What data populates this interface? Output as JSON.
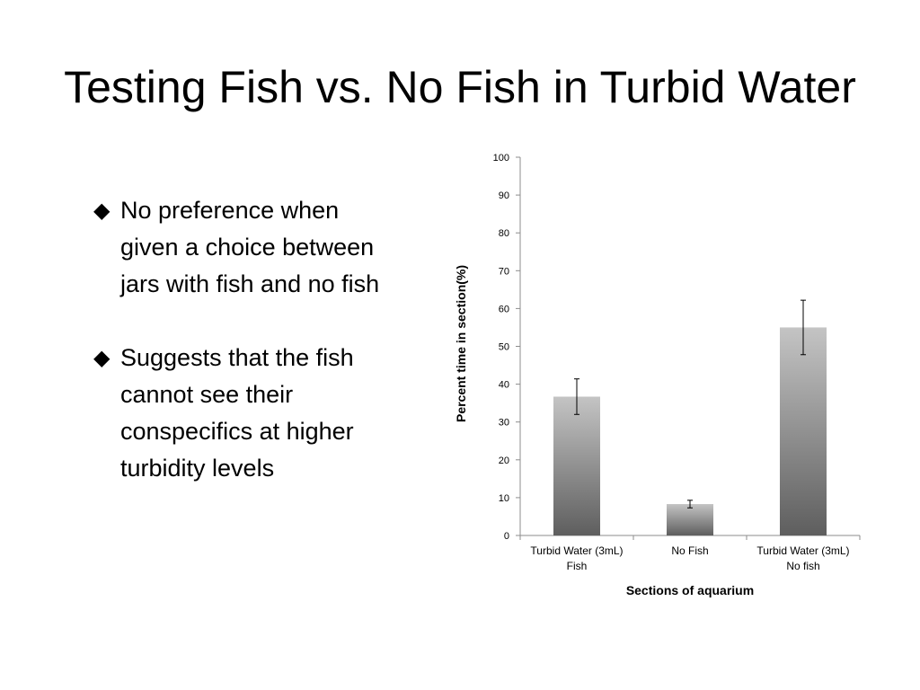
{
  "slide": {
    "title": "Testing Fish vs. No Fish in Turbid Water",
    "bullets": [
      {
        "marker": "◆",
        "text": "No preference when given a choice between jars with fish and no fish"
      },
      {
        "marker": "◆",
        "text": "Suggests that the fish cannot see their conspecifics at higher turbidity levels"
      }
    ]
  },
  "chart_data": {
    "type": "bar",
    "categories": [
      [
        "Turbid Water (3mL)",
        "Fish"
      ],
      [
        "No Fish"
      ],
      [
        "Turbid Water (3mL)",
        "No fish"
      ]
    ],
    "series": [
      {
        "values": [
          36.7,
          8.3,
          55.0
        ],
        "error": [
          4.7,
          1.0,
          7.2
        ]
      }
    ],
    "xlabel": "Sections of aquarium",
    "ylabel": "Percent time in section(%)",
    "ylim": [
      0,
      100
    ],
    "yticks": [
      0,
      10,
      20,
      30,
      40,
      50,
      60,
      70,
      80,
      90,
      100
    ],
    "grid": false,
    "legend": "none",
    "colors": {
      "bar_top": "#c4c4c4",
      "bar_bottom": "#5e5e5e",
      "axis": "#8c8c8c"
    }
  }
}
